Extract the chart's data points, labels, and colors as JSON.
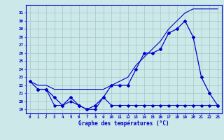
{
  "x": [
    0,
    1,
    2,
    3,
    4,
    5,
    6,
    7,
    8,
    9,
    10,
    11,
    12,
    13,
    14,
    15,
    16,
    17,
    18,
    19,
    20,
    21,
    22,
    23
  ],
  "series1": [
    22.5,
    21.5,
    21.5,
    20.5,
    19.5,
    20.5,
    19.5,
    19.0,
    19.5,
    20.5,
    22.0,
    22.0,
    22.0,
    24.0,
    26.0,
    26.0,
    26.5,
    28.5,
    29.0,
    30.0,
    28.0,
    23.0,
    21.0,
    19.5
  ],
  "series2_x": [
    0,
    1,
    2,
    3,
    4,
    5,
    6,
    7,
    8,
    9,
    10,
    11,
    12,
    13,
    14,
    15,
    16,
    17,
    18,
    19,
    20,
    21,
    22,
    23
  ],
  "series2_y": [
    22.5,
    22.0,
    22.0,
    21.5,
    21.5,
    21.5,
    21.5,
    21.5,
    21.5,
    21.5,
    22.0,
    22.5,
    23.0,
    24.5,
    25.5,
    26.5,
    27.5,
    29.0,
    30.0,
    31.0,
    31.5,
    31.5,
    31.5,
    31.5
  ],
  "series3_x": [
    1,
    2,
    3,
    4,
    5,
    6,
    7,
    8,
    9,
    10,
    11,
    12,
    13,
    14,
    15,
    16,
    17,
    18,
    19,
    20,
    21,
    22,
    23
  ],
  "series3_y": [
    21.5,
    21.5,
    19.5,
    19.5,
    20.0,
    19.5,
    19.0,
    19.0,
    20.5,
    19.5,
    19.5,
    19.5,
    19.5,
    19.5,
    19.5,
    19.5,
    19.5,
    19.5,
    19.5,
    19.5,
    19.5,
    19.5,
    19.5
  ],
  "line_color": "#0000cc",
  "bg_color": "#cce8e8",
  "grid_color": "#aacccc",
  "xlabel": "Graphe des températures (°C)",
  "ylim": [
    18.5,
    32.0
  ],
  "xlim": [
    -0.5,
    23.5
  ],
  "yticks": [
    19,
    20,
    21,
    22,
    23,
    24,
    25,
    26,
    27,
    28,
    29,
    30,
    31
  ],
  "xticks": [
    0,
    1,
    2,
    3,
    4,
    5,
    6,
    7,
    8,
    9,
    10,
    11,
    12,
    13,
    14,
    15,
    16,
    17,
    18,
    19,
    20,
    21,
    22,
    23
  ]
}
